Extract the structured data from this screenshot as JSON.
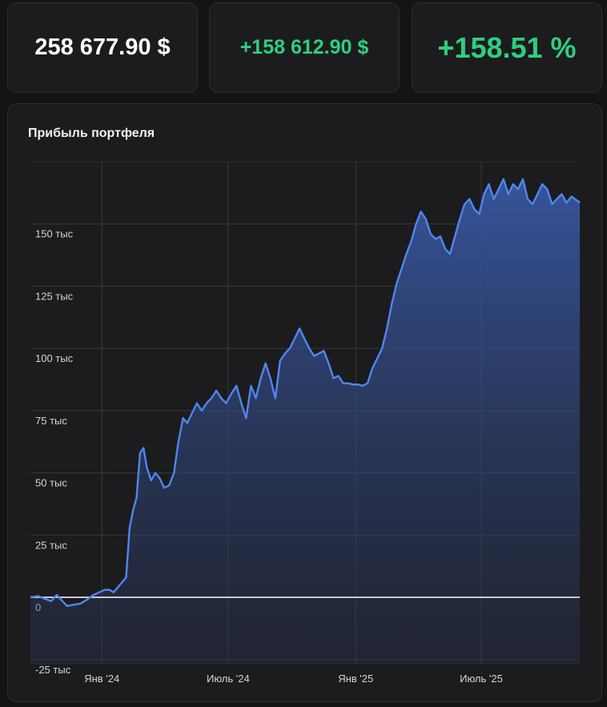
{
  "stats": {
    "total_value": "258 677.90 $",
    "profit_amount": "+158 612.90 $",
    "profit_percent": "+158.51 %"
  },
  "colors": {
    "background": "#141414",
    "card": "#1c1c1e",
    "positive": "#2ecf7f",
    "line": "#4f86f0",
    "zero_line": "#c8c8cc"
  },
  "chart_data": {
    "type": "area",
    "title": "Прибыль портфеля",
    "xlabel": "",
    "ylabel": "",
    "y_ticks": [
      {
        "value": -25000,
        "label": "-25 тыс"
      },
      {
        "value": 0,
        "label": "0"
      },
      {
        "value": 25000,
        "label": "25 тыс"
      },
      {
        "value": 50000,
        "label": "50 тыс"
      },
      {
        "value": 75000,
        "label": "75 тыс"
      },
      {
        "value": 100000,
        "label": "100 тыс"
      },
      {
        "value": 125000,
        "label": "125 тыс"
      },
      {
        "value": 150000,
        "label": "150 тыс"
      }
    ],
    "x_ticks": [
      {
        "value": "2024-01-01",
        "label": "Янв '24"
      },
      {
        "value": "2024-07-01",
        "label": "Июль '24"
      },
      {
        "value": "2025-01-01",
        "label": "Янв '25"
      },
      {
        "value": "2025-07-01",
        "label": "Июль '25"
      }
    ],
    "xlim": [
      "2023-09-20",
      "2025-11-20"
    ],
    "ylim": [
      -27000,
      175000
    ],
    "grid": true,
    "series": [
      {
        "x": [
          "2023-09-20",
          "2023-10-01",
          "2023-10-10",
          "2023-10-20",
          "2023-10-28",
          "2023-11-05",
          "2023-11-12",
          "2023-11-20",
          "2023-12-01",
          "2023-12-10",
          "2023-12-20",
          "2023-12-28",
          "2024-01-05",
          "2024-01-12",
          "2024-01-18",
          "2024-01-24",
          "2024-01-30",
          "2024-02-05",
          "2024-02-10",
          "2024-02-15",
          "2024-02-20",
          "2024-02-25",
          "2024-03-01",
          "2024-03-06",
          "2024-03-12",
          "2024-03-18",
          "2024-03-24",
          "2024-03-31",
          "2024-04-07",
          "2024-04-14",
          "2024-04-20",
          "2024-04-27",
          "2024-05-03",
          "2024-05-10",
          "2024-05-17",
          "2024-05-24",
          "2024-05-31",
          "2024-06-07",
          "2024-06-14",
          "2024-06-21",
          "2024-06-28",
          "2024-07-06",
          "2024-07-13",
          "2024-07-20",
          "2024-07-27",
          "2024-08-03",
          "2024-08-10",
          "2024-08-17",
          "2024-08-24",
          "2024-08-31",
          "2024-09-07",
          "2024-09-14",
          "2024-09-21",
          "2024-09-28",
          "2024-10-05",
          "2024-10-12",
          "2024-10-19",
          "2024-10-26",
          "2024-11-02",
          "2024-11-09",
          "2024-11-16",
          "2024-11-23",
          "2024-11-30",
          "2024-12-07",
          "2024-12-14",
          "2024-12-21",
          "2024-12-28",
          "2025-01-04",
          "2025-01-11",
          "2025-01-18",
          "2025-01-25",
          "2025-02-01",
          "2025-02-08",
          "2025-02-15",
          "2025-02-22",
          "2025-03-01",
          "2025-03-08",
          "2025-03-15",
          "2025-03-22",
          "2025-03-29",
          "2025-04-05",
          "2025-04-12",
          "2025-04-19",
          "2025-04-26",
          "2025-05-03",
          "2025-05-10",
          "2025-05-17",
          "2025-05-24",
          "2025-05-31",
          "2025-06-07",
          "2025-06-14",
          "2025-06-21",
          "2025-06-28",
          "2025-07-05",
          "2025-07-12",
          "2025-07-19",
          "2025-07-26",
          "2025-08-02",
          "2025-08-09",
          "2025-08-16",
          "2025-08-23",
          "2025-08-30",
          "2025-09-06",
          "2025-09-13",
          "2025-09-20",
          "2025-09-27",
          "2025-10-04",
          "2025-10-11",
          "2025-10-18",
          "2025-10-25",
          "2025-11-01",
          "2025-11-08",
          "2025-11-20"
        ],
        "values": [
          0,
          500,
          -500,
          -1500,
          1000,
          -1500,
          -3500,
          -3000,
          -2500,
          -1000,
          1000,
          2000,
          3000,
          3000,
          2000,
          4000,
          6000,
          8000,
          28000,
          35000,
          40000,
          58000,
          60000,
          52000,
          47000,
          50000,
          48000,
          44000,
          45000,
          50000,
          62000,
          72000,
          70000,
          74000,
          78000,
          75000,
          78000,
          80000,
          83000,
          80000,
          78000,
          82000,
          85000,
          78000,
          72000,
          85000,
          80000,
          88000,
          94000,
          88000,
          80000,
          95000,
          98000,
          100000,
          104000,
          108000,
          104000,
          100000,
          97000,
          98000,
          99000,
          94000,
          88000,
          89000,
          86000,
          86000,
          85500,
          85500,
          85000,
          86000,
          92000,
          96000,
          100000,
          108000,
          118000,
          126000,
          132000,
          138000,
          143000,
          150000,
          155000,
          152000,
          146000,
          144000,
          145000,
          140000,
          138000,
          145000,
          152000,
          158000,
          160000,
          156000,
          154000,
          162000,
          166000,
          160000,
          164000,
          168000,
          162000,
          166000,
          164000,
          168000,
          160000,
          158000,
          162000,
          166000,
          164000,
          158000,
          160000,
          162000,
          158500,
          161000,
          158613
        ]
      }
    ]
  }
}
